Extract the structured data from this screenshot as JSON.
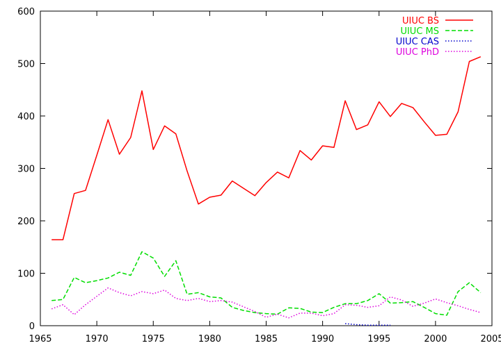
{
  "chart_data": {
    "type": "line",
    "title": "",
    "xlabel": "",
    "ylabel": "",
    "xlim": [
      1965,
      2005
    ],
    "ylim": [
      0,
      600
    ],
    "xticks": [
      1965,
      1970,
      1975,
      1980,
      1985,
      1990,
      1995,
      2000,
      2005
    ],
    "yticks": [
      0,
      100,
      200,
      300,
      400,
      500,
      600
    ],
    "grid": false,
    "legend_position": "top-right",
    "series": [
      {
        "name": "UIUC BS",
        "color": "#ff0000",
        "dash": "solid",
        "points": [
          [
            1966,
            164
          ],
          [
            1967,
            164
          ],
          [
            1968,
            252
          ],
          [
            1969,
            258
          ],
          [
            1970,
            325
          ],
          [
            1971,
            393
          ],
          [
            1972,
            327
          ],
          [
            1973,
            359
          ],
          [
            1974,
            448
          ],
          [
            1975,
            336
          ],
          [
            1976,
            381
          ],
          [
            1977,
            366
          ],
          [
            1978,
            295
          ],
          [
            1979,
            232
          ],
          [
            1980,
            245
          ],
          [
            1981,
            249
          ],
          [
            1982,
            276
          ],
          [
            1983,
            262
          ],
          [
            1984,
            248
          ],
          [
            1985,
            273
          ],
          [
            1986,
            293
          ],
          [
            1987,
            282
          ],
          [
            1988,
            334
          ],
          [
            1989,
            316
          ],
          [
            1990,
            343
          ],
          [
            1991,
            340
          ],
          [
            1992,
            429
          ],
          [
            1993,
            374
          ],
          [
            1994,
            383
          ],
          [
            1995,
            427
          ],
          [
            1996,
            399
          ],
          [
            1997,
            424
          ],
          [
            1998,
            416
          ],
          [
            1999,
            389
          ],
          [
            2000,
            363
          ],
          [
            2001,
            365
          ],
          [
            2002,
            408
          ],
          [
            2003,
            504
          ],
          [
            2004,
            513
          ]
        ]
      },
      {
        "name": "UIUC MS",
        "color": "#00dd00",
        "dash": "dashed",
        "points": [
          [
            1966,
            48
          ],
          [
            1967,
            50
          ],
          [
            1968,
            92
          ],
          [
            1969,
            82
          ],
          [
            1970,
            86
          ],
          [
            1971,
            91
          ],
          [
            1972,
            102
          ],
          [
            1973,
            96
          ],
          [
            1974,
            141
          ],
          [
            1975,
            129
          ],
          [
            1976,
            94
          ],
          [
            1977,
            124
          ],
          [
            1978,
            60
          ],
          [
            1979,
            63
          ],
          [
            1980,
            55
          ],
          [
            1981,
            53
          ],
          [
            1982,
            35
          ],
          [
            1983,
            29
          ],
          [
            1984,
            25
          ],
          [
            1985,
            23
          ],
          [
            1986,
            22
          ],
          [
            1987,
            34
          ],
          [
            1988,
            33
          ],
          [
            1989,
            26
          ],
          [
            1990,
            25
          ],
          [
            1991,
            35
          ],
          [
            1992,
            42
          ],
          [
            1993,
            42
          ],
          [
            1994,
            48
          ],
          [
            1995,
            61
          ],
          [
            1996,
            43
          ],
          [
            1997,
            44
          ],
          [
            1998,
            46
          ],
          [
            1999,
            35
          ],
          [
            2000,
            23
          ],
          [
            2001,
            20
          ],
          [
            2002,
            65
          ],
          [
            2003,
            82
          ],
          [
            2004,
            63
          ]
        ]
      },
      {
        "name": "UIUC CAS",
        "color": "#0000cc",
        "dash": "dotted",
        "points": [
          [
            1992,
            4
          ],
          [
            1993,
            2
          ],
          [
            1994,
            1
          ],
          [
            1995,
            1
          ],
          [
            1996,
            1
          ]
        ]
      },
      {
        "name": "UIUC PhD",
        "color": "#dd00dd",
        "dash": "dotted",
        "points": [
          [
            1966,
            32
          ],
          [
            1967,
            40
          ],
          [
            1968,
            21
          ],
          [
            1969,
            40
          ],
          [
            1970,
            56
          ],
          [
            1971,
            72
          ],
          [
            1972,
            63
          ],
          [
            1973,
            57
          ],
          [
            1974,
            65
          ],
          [
            1975,
            61
          ],
          [
            1976,
            68
          ],
          [
            1977,
            52
          ],
          [
            1978,
            48
          ],
          [
            1979,
            52
          ],
          [
            1980,
            46
          ],
          [
            1981,
            48
          ],
          [
            1982,
            45
          ],
          [
            1983,
            36
          ],
          [
            1984,
            27
          ],
          [
            1985,
            16
          ],
          [
            1986,
            22
          ],
          [
            1987,
            15
          ],
          [
            1988,
            24
          ],
          [
            1989,
            24
          ],
          [
            1990,
            19
          ],
          [
            1991,
            23
          ],
          [
            1992,
            40
          ],
          [
            1993,
            39
          ],
          [
            1994,
            35
          ],
          [
            1995,
            38
          ],
          [
            1996,
            55
          ],
          [
            1997,
            49
          ],
          [
            1998,
            37
          ],
          [
            1999,
            43
          ],
          [
            2000,
            51
          ],
          [
            2001,
            44
          ],
          [
            2002,
            38
          ],
          [
            2003,
            31
          ],
          [
            2004,
            25
          ]
        ]
      }
    ]
  }
}
